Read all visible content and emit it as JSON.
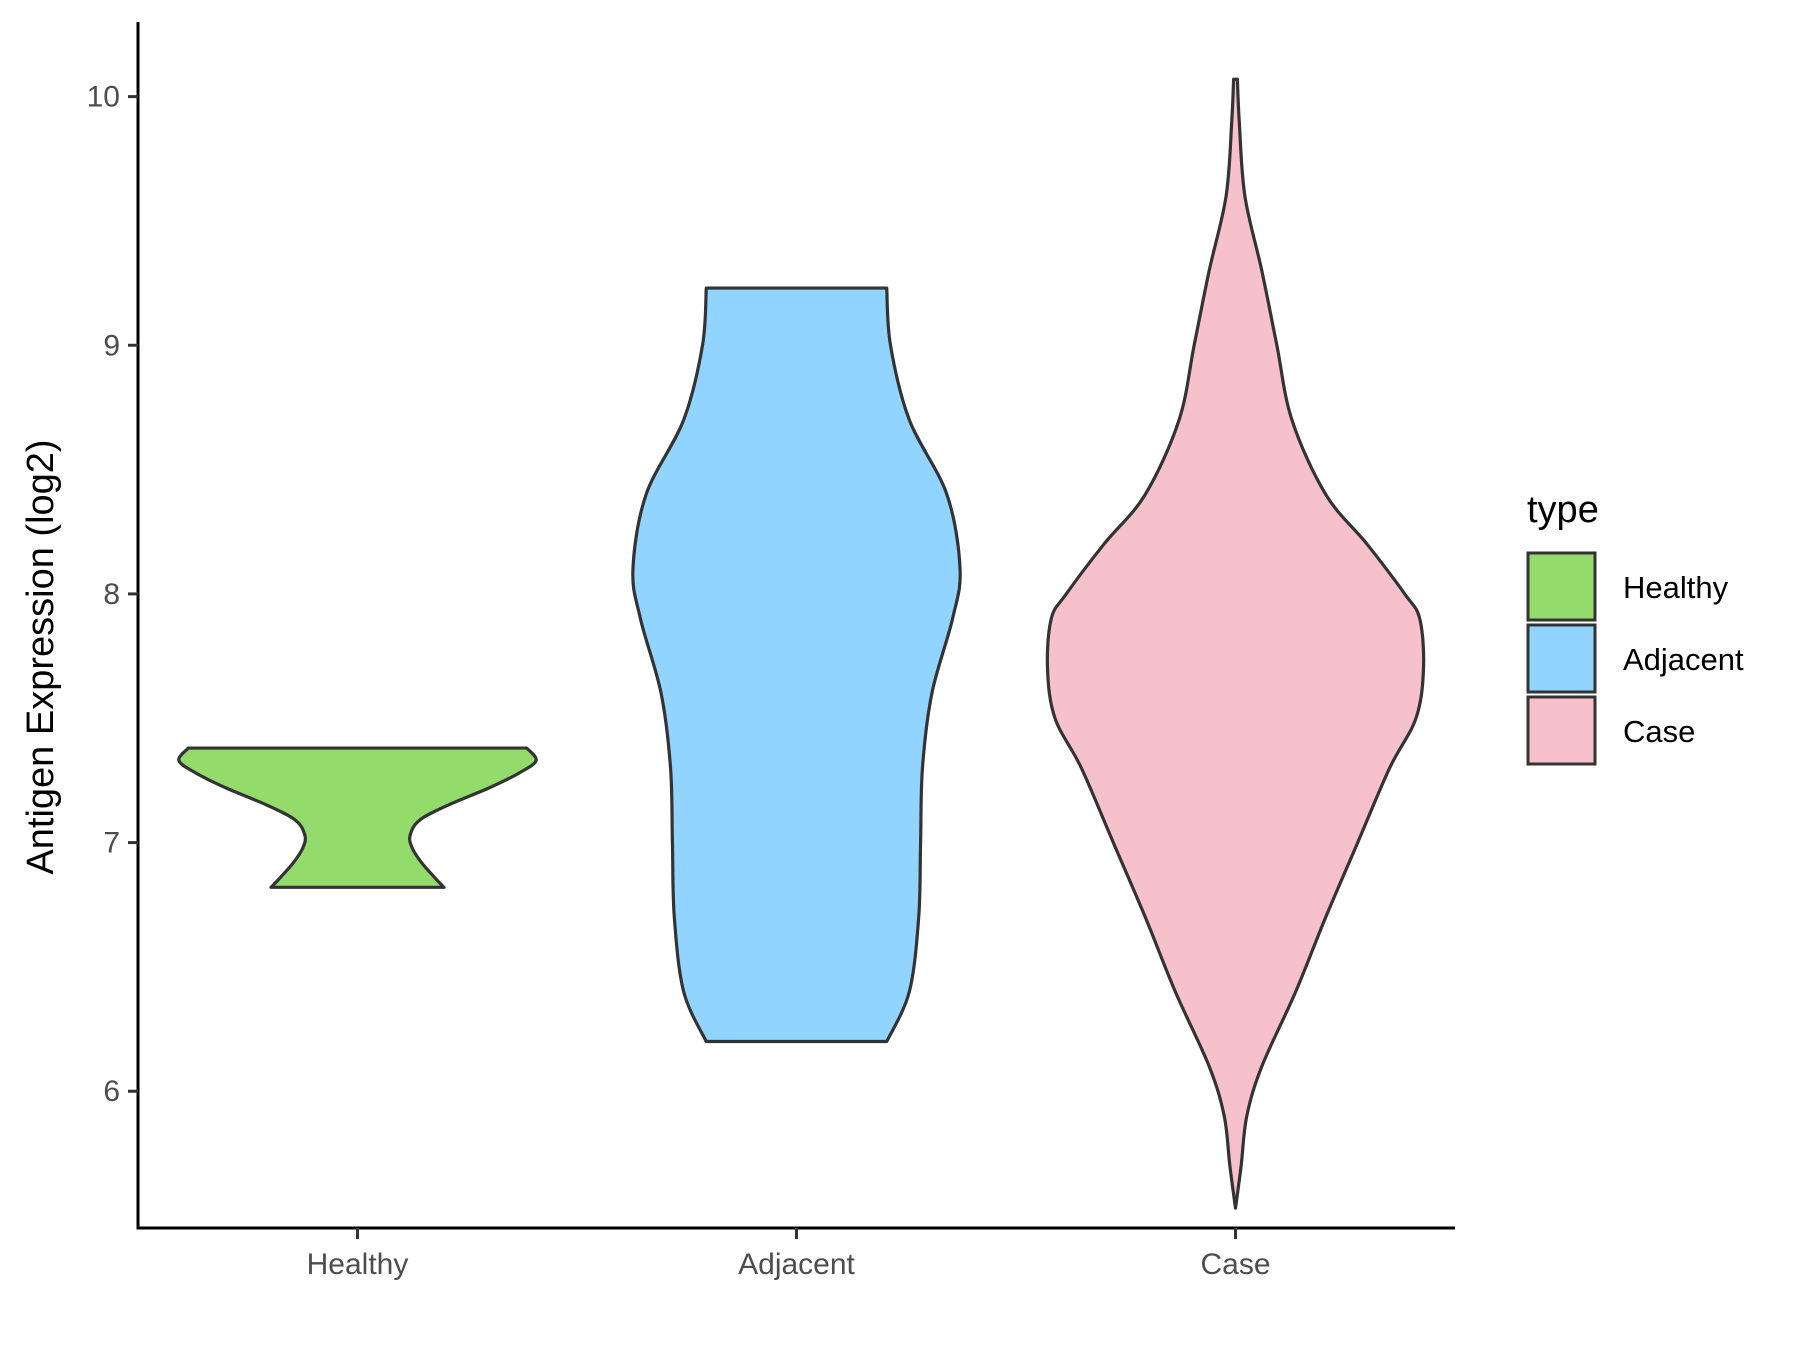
{
  "chart_data": {
    "type": "violin",
    "xlabel": "",
    "ylabel": "Antigen Expression (log2)",
    "categories": [
      "Healthy",
      "Adjacent",
      "Case"
    ],
    "ylim": [
      5.45,
      10.3
    ],
    "yticks": [
      6,
      7,
      8,
      9,
      10
    ],
    "grid": false,
    "legend": {
      "title": "type",
      "position": "right",
      "entries": [
        {
          "label": "Healthy",
          "color": "#93DB6A"
        },
        {
          "label": "Adjacent",
          "color": "#91D4FF"
        },
        {
          "label": "Case",
          "color": "#F7C1CC"
        }
      ]
    },
    "series": [
      {
        "category": "Healthy",
        "color": "#93DB6A",
        "min": 6.82,
        "max": 7.38,
        "profile": [
          [
            6.82,
            0.46
          ],
          [
            6.86,
            0.41
          ],
          [
            6.92,
            0.34
          ],
          [
            6.98,
            0.29
          ],
          [
            7.03,
            0.28
          ],
          [
            7.09,
            0.33
          ],
          [
            7.15,
            0.48
          ],
          [
            7.22,
            0.7
          ],
          [
            7.28,
            0.86
          ],
          [
            7.33,
            0.95
          ],
          [
            7.38,
            0.9
          ]
        ]
      },
      {
        "category": "Adjacent",
        "color": "#91D4FF",
        "min": 6.2,
        "max": 9.23,
        "profile": [
          [
            6.2,
            0.48
          ],
          [
            6.4,
            0.6
          ],
          [
            6.7,
            0.65
          ],
          [
            7.0,
            0.66
          ],
          [
            7.3,
            0.67
          ],
          [
            7.6,
            0.72
          ],
          [
            7.9,
            0.83
          ],
          [
            8.1,
            0.87
          ],
          [
            8.4,
            0.8
          ],
          [
            8.7,
            0.6
          ],
          [
            9.0,
            0.5
          ],
          [
            9.23,
            0.48
          ]
        ]
      },
      {
        "category": "Case",
        "color": "#F7C1CC",
        "min": 5.53,
        "max": 10.07,
        "profile": [
          [
            5.53,
            0.0
          ],
          [
            5.7,
            0.03
          ],
          [
            5.9,
            0.06
          ],
          [
            6.1,
            0.14
          ],
          [
            6.4,
            0.32
          ],
          [
            6.7,
            0.48
          ],
          [
            7.0,
            0.65
          ],
          [
            7.3,
            0.82
          ],
          [
            7.5,
            0.96
          ],
          [
            7.7,
            1.0
          ],
          [
            7.9,
            0.98
          ],
          [
            8.0,
            0.9
          ],
          [
            8.2,
            0.7
          ],
          [
            8.4,
            0.48
          ],
          [
            8.7,
            0.3
          ],
          [
            9.0,
            0.22
          ],
          [
            9.3,
            0.14
          ],
          [
            9.6,
            0.05
          ],
          [
            9.9,
            0.02
          ],
          [
            10.07,
            0.01
          ]
        ]
      }
    ]
  }
}
